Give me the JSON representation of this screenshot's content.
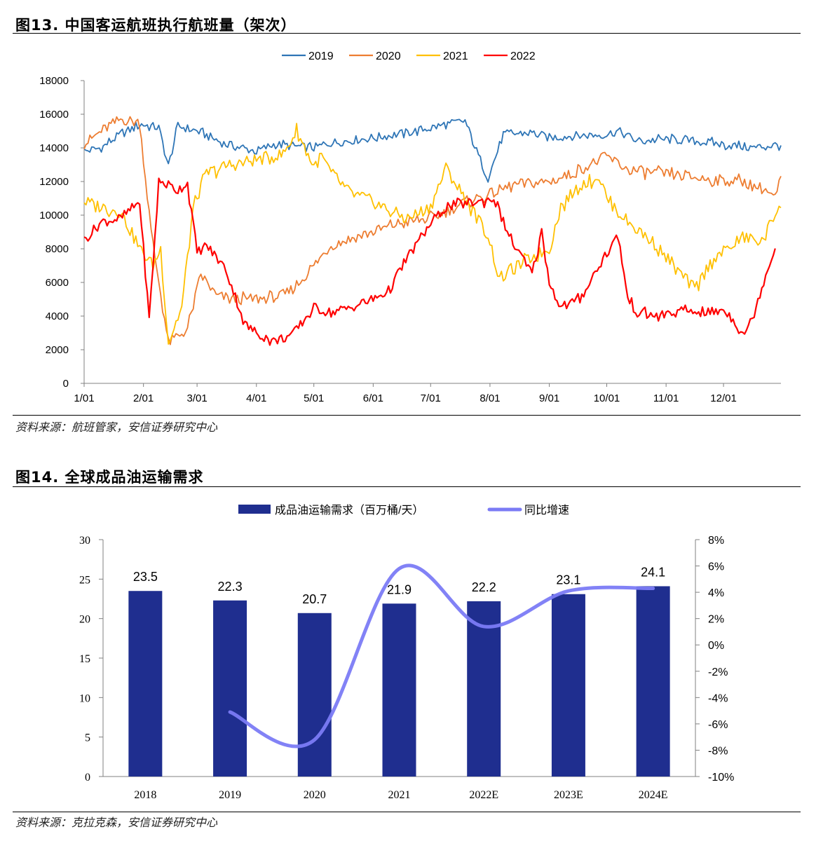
{
  "figure13": {
    "title": "图13. 中国客运航班执行航班量（架次）",
    "source": "资料来源：航班管家，安信证券研究中心"
  },
  "figure14": {
    "title": "图14. 全球成品油运输需求",
    "source": "资料来源：克拉克森，安信证券研究中心"
  },
  "chart_data": [
    {
      "type": "line",
      "title": "",
      "xlabel": "",
      "ylabel": "",
      "x_ticks": [
        "1/01",
        "2/01",
        "3/01",
        "4/01",
        "5/01",
        "6/01",
        "7/01",
        "8/01",
        "9/01",
        "10/01",
        "11/01",
        "12/01"
      ],
      "y_ticks": [
        0,
        2000,
        4000,
        6000,
        8000,
        10000,
        12000,
        14000,
        16000,
        18000
      ],
      "ylim": [
        0,
        18000
      ],
      "grid": false,
      "legend": "top-center",
      "series": [
        {
          "name": "2019",
          "color": "#2E75B6",
          "x": [
            1,
            10,
            20,
            31,
            40,
            45,
            50,
            60,
            75,
            91,
            100,
            121,
            130,
            152,
            170,
            182,
            200,
            206,
            212,
            220,
            235,
            244,
            255,
            274,
            280,
            290,
            305,
            320,
            335,
            350,
            365
          ],
          "values": [
            13800,
            14000,
            14800,
            15400,
            15200,
            12900,
            15300,
            15000,
            14200,
            13800,
            14200,
            14000,
            14300,
            14600,
            14900,
            15200,
            15600,
            13800,
            12200,
            14800,
            14900,
            14600,
            14700,
            14800,
            15000,
            14400,
            14500,
            14400,
            14200,
            14000,
            14200
          ]
        },
        {
          "name": "2020",
          "color": "#ED7D31",
          "x": [
            1,
            10,
            20,
            30,
            36,
            45,
            55,
            62,
            70,
            80,
            91,
            105,
            112,
            121,
            130,
            140,
            152,
            165,
            182,
            192,
            200,
            212,
            225,
            244,
            255,
            274,
            285,
            300,
            315,
            330,
            345,
            357,
            362,
            365
          ],
          "values": [
            14200,
            15000,
            15700,
            15500,
            9000,
            2400,
            3200,
            6500,
            5200,
            5000,
            5000,
            5200,
            5800,
            7000,
            8200,
            8600,
            9000,
            9500,
            9800,
            10300,
            10800,
            11200,
            11800,
            12000,
            12400,
            13500,
            12700,
            12500,
            12300,
            12100,
            12000,
            11500,
            11000,
            12200
          ]
        },
        {
          "name": "2021",
          "color": "#FFC000",
          "x": [
            1,
            10,
            20,
            30,
            37,
            41,
            45,
            52,
            58,
            65,
            75,
            91,
            105,
            112,
            121,
            125,
            130,
            140,
            152,
            160,
            170,
            182,
            190,
            200,
            212,
            218,
            224,
            235,
            244,
            250,
            260,
            270,
            274,
            285,
            300,
            310,
            320,
            330,
            335,
            345,
            355,
            365
          ],
          "values": [
            10800,
            10500,
            10200,
            8000,
            7000,
            8000,
            2400,
            4500,
            10500,
            12500,
            12900,
            13300,
            13600,
            15000,
            12900,
            13500,
            12500,
            11300,
            10800,
            10300,
            9800,
            10500,
            12800,
            11000,
            8800,
            6200,
            6700,
            7500,
            8000,
            10500,
            11800,
            12300,
            11000,
            9600,
            8200,
            6800,
            5600,
            7500,
            7800,
            8700,
            8400,
            10800
          ]
        },
        {
          "name": "2022",
          "color": "#FF0000",
          "x": [
            1,
            10,
            20,
            30,
            35,
            40,
            45,
            50,
            55,
            60,
            65,
            75,
            85,
            91,
            100,
            105,
            110,
            121,
            130,
            140,
            152,
            160,
            170,
            182,
            190,
            200,
            208,
            215,
            224,
            235,
            240,
            244,
            250,
            260,
            270,
            280,
            285,
            290,
            300,
            315,
            330,
            335,
            340,
            345,
            348,
            352,
            357,
            362
          ],
          "values": [
            8500,
            9600,
            9800,
            10800,
            3800,
            12000,
            11800,
            11500,
            11900,
            7800,
            8200,
            6800,
            3500,
            3000,
            2500,
            2700,
            2900,
            4500,
            4200,
            4500,
            5000,
            5500,
            7500,
            9500,
            10500,
            10700,
            10800,
            11000,
            8500,
            6500,
            9000,
            6000,
            4500,
            5000,
            7000,
            8800,
            5000,
            4200,
            4000,
            4300,
            4200,
            4400,
            3800,
            3000,
            3300,
            4500,
            6500,
            8000
          ]
        }
      ]
    },
    {
      "type": "bar",
      "title": "",
      "xlabel": "",
      "ylabel": "",
      "categories": [
        "2018",
        "2019",
        "2020",
        "2021",
        "2022E",
        "2023E",
        "2024E"
      ],
      "ylim": [
        0,
        30
      ],
      "y_ticks": [
        0,
        5,
        10,
        15,
        20,
        25,
        30
      ],
      "y2lim": [
        -10,
        8
      ],
      "y2_ticks": [
        "-10%",
        "-8%",
        "-6%",
        "-4%",
        "-2%",
        "0%",
        "2%",
        "4%",
        "6%",
        "8%"
      ],
      "legend": "top-center",
      "series": [
        {
          "name": "成品油运输需求（百万桶/天）",
          "type": "bar",
          "color": "#1F2E8F",
          "values": [
            23.5,
            22.3,
            20.7,
            21.9,
            22.2,
            23.1,
            24.1
          ]
        },
        {
          "name": "同比增速",
          "type": "line",
          "axis": "right",
          "color": "#7B7BF5",
          "values": [
            null,
            -5.1,
            -7.2,
            5.8,
            1.4,
            4.1,
            4.3
          ]
        }
      ]
    }
  ]
}
